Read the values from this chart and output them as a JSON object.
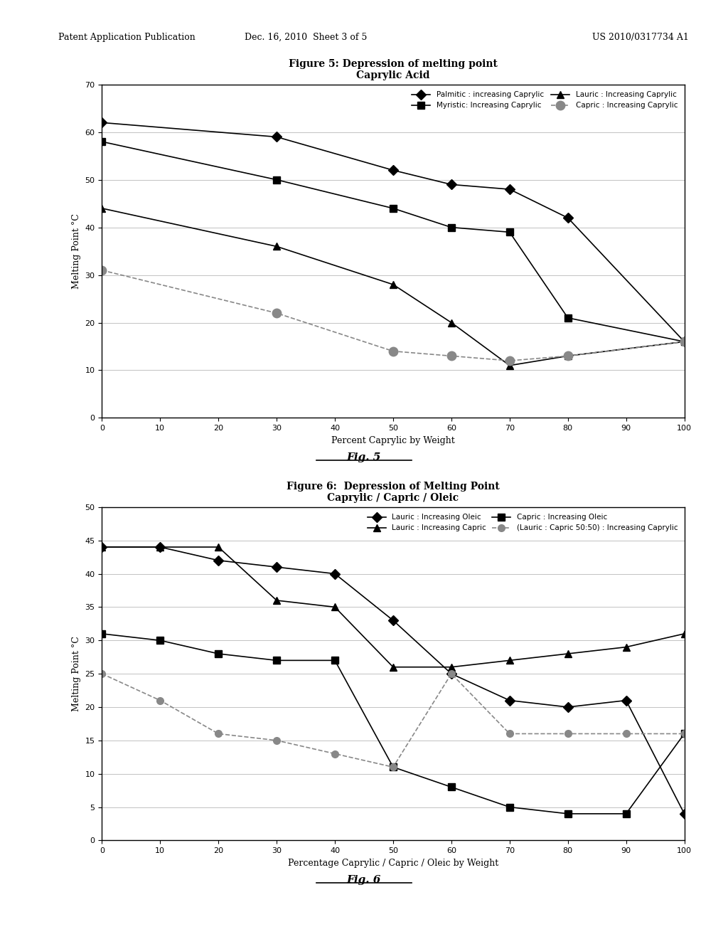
{
  "fig5": {
    "title_line1": "Figure 5: Depression of melting point",
    "title_line2": "Caprylic Acid",
    "xlabel": "Percent Caprylic by Weight",
    "ylabel": "Melting Point °C",
    "xlim": [
      0,
      100
    ],
    "ylim": [
      0,
      70
    ],
    "yticks": [
      0,
      10,
      20,
      30,
      40,
      50,
      60,
      70
    ],
    "xticks": [
      0,
      10,
      20,
      30,
      40,
      50,
      60,
      70,
      80,
      90,
      100
    ],
    "series": {
      "Palmitic : increasing Caprylic": {
        "x": [
          0,
          30,
          50,
          60,
          70,
          80,
          100
        ],
        "y": [
          62,
          59,
          52,
          49,
          48,
          42,
          16
        ],
        "marker": "D",
        "color": "#000000",
        "linestyle": "-",
        "markersize": 7
      },
      "Myristic: Increasing Caprylic": {
        "x": [
          0,
          30,
          50,
          60,
          70,
          80,
          100
        ],
        "y": [
          58,
          50,
          44,
          40,
          39,
          21,
          16
        ],
        "marker": "s",
        "color": "#000000",
        "linestyle": "-",
        "markersize": 7
      },
      "Lauric : Increasing Caprylic": {
        "x": [
          0,
          30,
          50,
          60,
          70,
          80,
          100
        ],
        "y": [
          44,
          36,
          28,
          20,
          11,
          13,
          16
        ],
        "marker": "^",
        "color": "#000000",
        "linestyle": "-",
        "markersize": 7
      },
      "Capric : Increasing Caprylic": {
        "x": [
          0,
          30,
          50,
          60,
          70,
          80,
          100
        ],
        "y": [
          31,
          22,
          14,
          13,
          12,
          13,
          16
        ],
        "marker": "o",
        "color": "#888888",
        "linestyle": "--",
        "markersize": 9
      }
    }
  },
  "fig6": {
    "title_line1": "Figure 6:  Depression of Melting Point",
    "title_line2": "Caprylic / Capric / Oleic",
    "xlabel": "Percentage Caprylic / Capric / Oleic by Weight",
    "ylabel": "Melting Point °C",
    "xlim": [
      0,
      100
    ],
    "ylim": [
      0,
      50
    ],
    "yticks": [
      0,
      5,
      10,
      15,
      20,
      25,
      30,
      35,
      40,
      45,
      50
    ],
    "xticks": [
      0,
      10,
      20,
      30,
      40,
      50,
      60,
      70,
      80,
      90,
      100
    ],
    "series": {
      "Lauric : Increasing Oleic": {
        "x": [
          0,
          10,
          20,
          30,
          40,
          50,
          60,
          70,
          80,
          90,
          100
        ],
        "y": [
          44,
          44,
          42,
          41,
          40,
          33,
          25,
          21,
          20,
          21,
          4
        ],
        "marker": "D",
        "color": "#000000",
        "linestyle": "-",
        "markersize": 7
      },
      "Lauric : Increasing Capric": {
        "x": [
          0,
          10,
          20,
          30,
          40,
          50,
          60,
          70,
          80,
          90,
          100
        ],
        "y": [
          44,
          44,
          44,
          36,
          35,
          26,
          26,
          27,
          28,
          29,
          31
        ],
        "marker": "^",
        "color": "#000000",
        "linestyle": "-",
        "markersize": 7
      },
      "Capric : Increasing Oleic": {
        "x": [
          0,
          10,
          20,
          30,
          40,
          50,
          60,
          70,
          80,
          90,
          100
        ],
        "y": [
          31,
          30,
          28,
          27,
          27,
          11,
          8,
          5,
          4,
          4,
          16
        ],
        "marker": "s",
        "color": "#000000",
        "linestyle": "-",
        "markersize": 7
      },
      "(Lauric : Capric 50:50) : Increasing Caprylic": {
        "x": [
          0,
          10,
          20,
          30,
          40,
          50,
          60,
          70,
          80,
          90,
          100
        ],
        "y": [
          25,
          21,
          16,
          15,
          13,
          11,
          25,
          16,
          16,
          16,
          16
        ],
        "marker": "o",
        "color": "#888888",
        "linestyle": "--",
        "markersize": 7
      }
    }
  },
  "background_color": "#ffffff",
  "header_left": "Patent Application Publication",
  "header_mid": "Dec. 16, 2010  Sheet 3 of 5",
  "header_right": "US 2010/0317734 A1",
  "fig5_label": "Fig. 5",
  "fig6_label": "Fig. 6"
}
